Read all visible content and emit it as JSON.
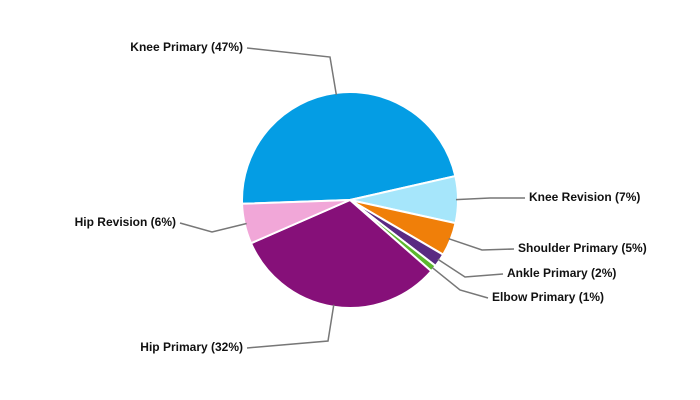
{
  "chart_data": {
    "type": "pie",
    "categories": [
      "Knee Primary (47%)",
      "Knee Revision (7%)",
      "Shoulder Primary (5%)",
      "Ankle Primary (2%)",
      "Elbow Primary (1%)",
      "Hip Primary (32%)",
      "Hip Revision (6%)"
    ],
    "values": [
      47,
      7,
      5,
      2,
      1,
      32,
      6
    ],
    "colors": [
      "#049de4",
      "#a6e6fb",
      "#f07f09",
      "#5a2a82",
      "#5cb82e",
      "#861079",
      "#f1a7d8"
    ]
  }
}
